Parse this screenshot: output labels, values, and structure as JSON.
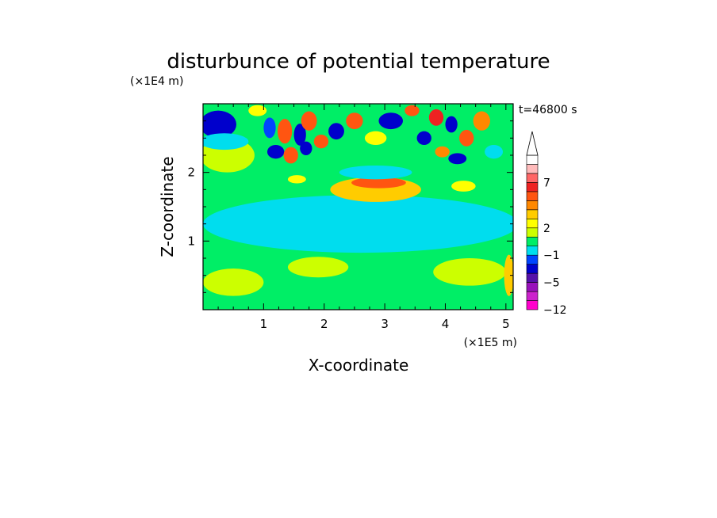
{
  "chart_data": {
    "type": "heatmap",
    "title": "disturbunce of potential temperature",
    "time_label": "t=46800 s",
    "xlabel": "X-coordinate",
    "ylabel": "Z-coordinate",
    "x_unit": "(×1E5 m)",
    "y_unit": "(×1E4 m)",
    "x_range": [
      0,
      5.12
    ],
    "y_range": [
      0,
      3.0
    ],
    "x_ticks": [
      "1",
      "2",
      "3",
      "4",
      "5"
    ],
    "y_ticks": [
      "1",
      "2"
    ],
    "colorbar": {
      "tick_labels": [
        "7",
        "2",
        "−1",
        "−5",
        "−12"
      ],
      "colors": [
        "#ff00cc",
        "#cc22cc",
        "#9911bb",
        "#5511aa",
        "#0000cc",
        "#0044ff",
        "#00ddee",
        "#00ee66",
        "#ccff00",
        "#ffff00",
        "#ffcc00",
        "#ff8800",
        "#ff5511",
        "#ee2222",
        "#ff6666",
        "#ffbbbb",
        "#ffffff"
      ]
    },
    "regions": [
      {
        "x": 2.65,
        "z": 0.45,
        "rx": 2.6,
        "rz": 0.48,
        "value": 0.6
      },
      {
        "x": 1.9,
        "z": 0.62,
        "rx": 0.5,
        "rz": 0.15,
        "value": 1.6
      },
      {
        "x": 4.4,
        "z": 0.55,
        "rx": 0.6,
        "rz": 0.2,
        "value": 1.6
      },
      {
        "x": 0.5,
        "z": 0.4,
        "rx": 0.5,
        "rz": 0.2,
        "value": 1.6
      },
      {
        "x": 2.6,
        "z": 1.25,
        "rx": 2.6,
        "rz": 0.42,
        "value": -0.4
      },
      {
        "x": 2.6,
        "z": 2.0,
        "rx": 2.6,
        "rz": 0.3,
        "value": 0.6
      },
      {
        "x": 0.4,
        "z": 2.25,
        "rx": 0.45,
        "rz": 0.25,
        "value": 1.6
      },
      {
        "x": 2.85,
        "z": 1.75,
        "rx": 0.75,
        "rz": 0.18,
        "value": 3.0
      },
      {
        "x": 2.9,
        "z": 1.85,
        "rx": 0.45,
        "rz": 0.08,
        "value": 5.5
      },
      {
        "x": 2.85,
        "z": 2.0,
        "rx": 0.6,
        "rz": 0.1,
        "value": -0.8
      },
      {
        "x": 0.25,
        "z": 2.7,
        "rx": 0.3,
        "rz": 0.2,
        "value": -4.5
      },
      {
        "x": 0.35,
        "z": 2.45,
        "rx": 0.4,
        "rz": 0.12,
        "value": -0.8
      },
      {
        "x": 1.35,
        "z": 2.6,
        "rx": 0.12,
        "rz": 0.18,
        "value": 5.5
      },
      {
        "x": 1.6,
        "z": 2.55,
        "rx": 0.1,
        "rz": 0.16,
        "value": -4.0
      },
      {
        "x": 1.75,
        "z": 2.75,
        "rx": 0.13,
        "rz": 0.14,
        "value": 5.0
      },
      {
        "x": 1.2,
        "z": 2.3,
        "rx": 0.14,
        "rz": 0.1,
        "value": -4.0
      },
      {
        "x": 1.45,
        "z": 2.25,
        "rx": 0.12,
        "rz": 0.12,
        "value": 5.0
      },
      {
        "x": 1.7,
        "z": 2.35,
        "rx": 0.1,
        "rz": 0.1,
        "value": -3.5
      },
      {
        "x": 1.1,
        "z": 2.65,
        "rx": 0.1,
        "rz": 0.15,
        "value": -3.0
      },
      {
        "x": 1.95,
        "z": 2.45,
        "rx": 0.12,
        "rz": 0.1,
        "value": 5.0
      },
      {
        "x": 2.2,
        "z": 2.6,
        "rx": 0.13,
        "rz": 0.12,
        "value": -4.0
      },
      {
        "x": 2.5,
        "z": 2.75,
        "rx": 0.14,
        "rz": 0.12,
        "value": 5.0
      },
      {
        "x": 3.1,
        "z": 2.75,
        "rx": 0.2,
        "rz": 0.12,
        "value": -5.0
      },
      {
        "x": 2.85,
        "z": 2.5,
        "rx": 0.18,
        "rz": 0.1,
        "value": 2.5
      },
      {
        "x": 3.65,
        "z": 2.5,
        "rx": 0.12,
        "rz": 0.1,
        "value": -3.5
      },
      {
        "x": 3.85,
        "z": 2.8,
        "rx": 0.12,
        "rz": 0.12,
        "value": 6.0
      },
      {
        "x": 4.1,
        "z": 2.7,
        "rx": 0.1,
        "rz": 0.12,
        "value": -4.0
      },
      {
        "x": 4.2,
        "z": 2.2,
        "rx": 0.15,
        "rz": 0.08,
        "value": -4.0
      },
      {
        "x": 4.35,
        "z": 2.5,
        "rx": 0.12,
        "rz": 0.12,
        "value": 5.5
      },
      {
        "x": 3.95,
        "z": 2.3,
        "rx": 0.12,
        "rz": 0.08,
        "value": 4.0
      },
      {
        "x": 4.6,
        "z": 2.75,
        "rx": 0.14,
        "rz": 0.14,
        "value": 4.5
      },
      {
        "x": 4.8,
        "z": 2.3,
        "rx": 0.15,
        "rz": 0.1,
        "value": -0.8
      },
      {
        "x": 3.45,
        "z": 2.9,
        "rx": 0.12,
        "rz": 0.08,
        "value": 5.0
      },
      {
        "x": 1.55,
        "z": 1.9,
        "rx": 0.15,
        "rz": 0.06,
        "value": 2.5
      },
      {
        "x": 4.3,
        "z": 1.8,
        "rx": 0.2,
        "rz": 0.08,
        "value": 2.5
      },
      {
        "x": 0.9,
        "z": 2.9,
        "rx": 0.15,
        "rz": 0.08,
        "value": 2.5
      },
      {
        "x": 5.05,
        "z": 0.5,
        "rx": 0.08,
        "rz": 0.3,
        "value": 3.0
      }
    ]
  }
}
